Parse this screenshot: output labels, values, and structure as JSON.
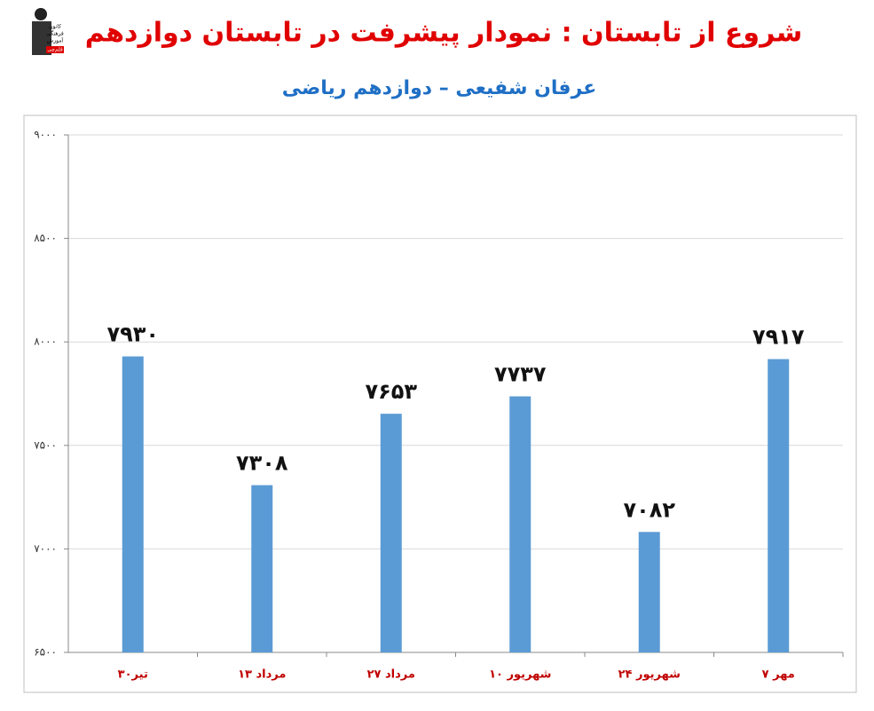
{
  "logo_text": [
    "کانون",
    "فرهنگی",
    "آموزش",
    "قلم‌چی"
  ],
  "chart_data": {
    "type": "bar",
    "title": "شروع از تابستان : نمودار پیشرفت در تابستان دوازدهم",
    "subtitle": "عرفان شفیعی – دوازدهم ریاضی",
    "categories": [
      "۳۰تیر",
      "۱۳ مرداد",
      "۲۷ مرداد",
      "۱۰ شهریور",
      "۲۴ شهریور",
      "۷ مهر"
    ],
    "values": [
      7930,
      7308,
      7653,
      7737,
      7082,
      7917
    ],
    "value_labels": [
      "۷۹۳۰",
      "۷۳۰۸",
      "۷۶۵۳",
      "۷۷۳۷",
      "۷۰۸۲",
      "۷۹۱۷"
    ],
    "color": "#5b9bd5",
    "ylim": [
      6500,
      9000
    ],
    "yticks": [
      {
        "value": 6500,
        "label": "۶۵۰۰"
      },
      {
        "value": 7000,
        "label": "۷۰۰۰"
      },
      {
        "value": 7500,
        "label": "۷۵۰۰"
      },
      {
        "value": 8000,
        "label": "۸۰۰۰"
      },
      {
        "value": 8500,
        "label": "۸۵۰۰"
      },
      {
        "value": 9000,
        "label": "۹۰۰۰"
      }
    ],
    "grid": true
  }
}
